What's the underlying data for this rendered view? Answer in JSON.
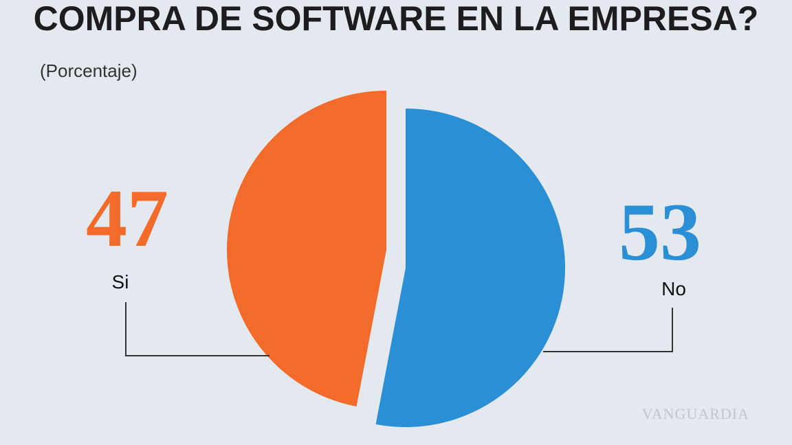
{
  "chart_data": {
    "type": "pie",
    "title": "COMPRA DE SOFTWARE EN LA EMPRESA?",
    "subtitle": "(Porcentaje)",
    "categories": [
      "Si",
      "No"
    ],
    "values": [
      47,
      53
    ],
    "colors": [
      "#f26b2a",
      "#2b8fd6"
    ],
    "watermark": "VANGUARDIA"
  }
}
